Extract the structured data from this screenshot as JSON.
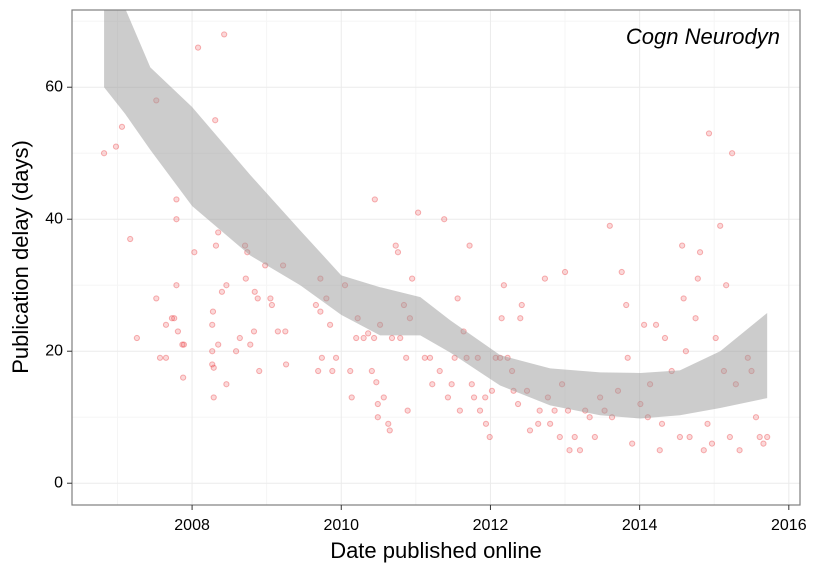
{
  "chart_data": {
    "type": "scatter",
    "annotation": "Cogn Neurodyn",
    "x_label": "Date published online",
    "y_label": "Publication delay (days)",
    "xlim": [
      2006.39,
      2016.15
    ],
    "ylim": [
      -3.3,
      71.7
    ],
    "xticks": [
      2008,
      2010,
      2012,
      2014,
      2016
    ],
    "yticks": [
      0,
      20,
      40,
      60
    ],
    "xminor": [
      2007,
      2009,
      2011,
      2013,
      2015
    ],
    "yminor": [
      10,
      30,
      50,
      70
    ],
    "grid": true,
    "color": "#e8292b",
    "band_color": "#999999",
    "x": [
      2006.82,
      2006.98,
      2007.06,
      2007.17,
      2007.26,
      2007.52,
      2007.52,
      2007.57,
      2007.65,
      2007.65,
      2007.73,
      2007.76,
      2007.79,
      2007.79,
      2007.79,
      2007.81,
      2007.87,
      2007.89,
      2007.88,
      2008.03,
      2008.08,
      2008.27,
      2008.27,
      2008.27,
      2008.28,
      2008.29,
      2008.31,
      2008.29,
      2008.32,
      2008.35,
      2008.35,
      2008.4,
      2008.43,
      2008.46,
      2008.46,
      2008.59,
      2008.64,
      2008.71,
      2008.72,
      2008.74,
      2008.78,
      2008.83,
      2008.84,
      2008.88,
      2008.9,
      2008.98,
      2009.05,
      2009.07,
      2009.15,
      2009.22,
      2009.25,
      2009.26,
      2009.66,
      2009.69,
      2009.72,
      2009.72,
      2009.74,
      2009.8,
      2009.85,
      2009.88,
      2009.93,
      2010.05,
      2010.12,
      2010.14,
      2010.2,
      2010.22,
      2010.3,
      2010.36,
      2010.41,
      2010.44,
      2010.45,
      2010.47,
      2010.49,
      2010.49,
      2010.52,
      2010.57,
      2010.63,
      2010.65,
      2010.68,
      2010.73,
      2010.76,
      2010.79,
      2010.84,
      2010.87,
      2010.89,
      2010.92,
      2010.95,
      2011.03,
      2011.12,
      2011.19,
      2011.22,
      2011.32,
      2011.38,
      2011.43,
      2011.48,
      2011.52,
      2011.56,
      2011.59,
      2011.64,
      2011.68,
      2011.72,
      2011.75,
      2011.78,
      2011.83,
      2011.86,
      2011.93,
      2011.94,
      2011.99,
      2012.02,
      2012.07,
      2012.13,
      2012.15,
      2012.18,
      2012.23,
      2012.29,
      2012.31,
      2012.37,
      2012.4,
      2012.42,
      2012.49,
      2012.53,
      2012.64,
      2012.66,
      2012.73,
      2012.77,
      2012.8,
      2012.86,
      2012.93,
      2012.96,
      2013.0,
      2013.04,
      2013.06,
      2013.13,
      2013.2,
      2013.27,
      2013.33,
      2013.4,
      2013.47,
      2013.53,
      2013.6,
      2013.63,
      2013.71,
      2013.76,
      2013.82,
      2013.84,
      2013.9,
      2014.01,
      2014.06,
      2014.11,
      2014.14,
      2014.22,
      2014.27,
      2014.3,
      2014.34,
      2014.43,
      2014.54,
      2014.57,
      2014.59,
      2014.62,
      2014.67,
      2014.75,
      2014.78,
      2014.81,
      2014.86,
      2014.91,
      2014.93,
      2014.97,
      2015.02,
      2015.08,
      2015.13,
      2015.16,
      2015.21,
      2015.24,
      2015.29,
      2015.34,
      2015.45,
      2015.5,
      2015.56,
      2015.61,
      2015.66,
      2015.71
    ],
    "values": [
      50,
      51,
      54,
      37,
      22,
      58,
      28,
      19,
      19,
      24,
      25,
      25,
      43,
      40,
      30,
      23,
      21,
      21,
      16,
      35,
      66,
      20,
      24,
      18,
      26,
      13,
      55,
      17.5,
      36,
      38,
      21,
      29,
      68,
      15,
      30,
      20,
      22,
      36,
      31,
      35,
      21,
      23,
      29,
      28,
      17,
      33,
      28,
      27,
      23,
      33,
      23,
      18,
      27,
      17,
      26,
      31,
      19,
      28,
      24,
      17,
      19,
      30,
      17,
      13,
      22,
      25,
      22,
      22.7,
      17,
      22,
      43,
      15.3,
      12,
      10,
      24,
      13,
      9,
      8,
      22,
      36,
      35,
      22,
      27,
      19,
      11,
      25,
      31,
      41,
      19,
      19,
      15,
      17,
      40,
      13,
      15,
      19,
      28,
      11,
      23,
      19,
      36,
      15,
      13,
      19,
      11,
      13,
      9,
      7,
      14,
      19,
      19,
      25,
      30,
      19,
      17,
      14,
      12,
      25,
      27,
      14,
      8,
      9,
      11,
      31,
      13,
      9,
      11,
      7,
      15,
      32,
      11,
      5,
      7,
      5,
      11,
      10,
      7,
      13,
      11,
      39,
      10,
      14,
      32,
      27,
      19,
      6,
      12,
      24,
      10,
      15,
      24,
      5,
      9,
      22,
      17,
      7,
      36,
      28,
      20,
      7,
      25,
      31,
      35,
      5,
      9,
      53,
      6,
      22,
      39,
      17,
      30,
      7,
      50,
      15,
      5,
      19,
      17,
      10,
      7,
      6,
      7
    ],
    "band": {
      "x": [
        2006.82,
        2007.1,
        2007.44,
        2008.0,
        2008.78,
        2009.45,
        2010.0,
        2010.52,
        2011.06,
        2011.46,
        2012.13,
        2012.8,
        2013.47,
        2014.01,
        2014.54,
        2015.08,
        2015.71
      ],
      "upper": [
        80,
        72,
        63,
        57,
        46.7,
        38.3,
        31.5,
        29.7,
        28.2,
        24.7,
        19.4,
        17.4,
        16.8,
        16.7,
        17.1,
        20,
        25.8
      ],
      "lower": [
        60,
        56,
        50.5,
        42,
        34.5,
        30,
        25.5,
        22.4,
        22.4,
        19.8,
        14.8,
        11.8,
        10.3,
        9.8,
        10.3,
        11.4,
        12.9
      ]
    }
  }
}
